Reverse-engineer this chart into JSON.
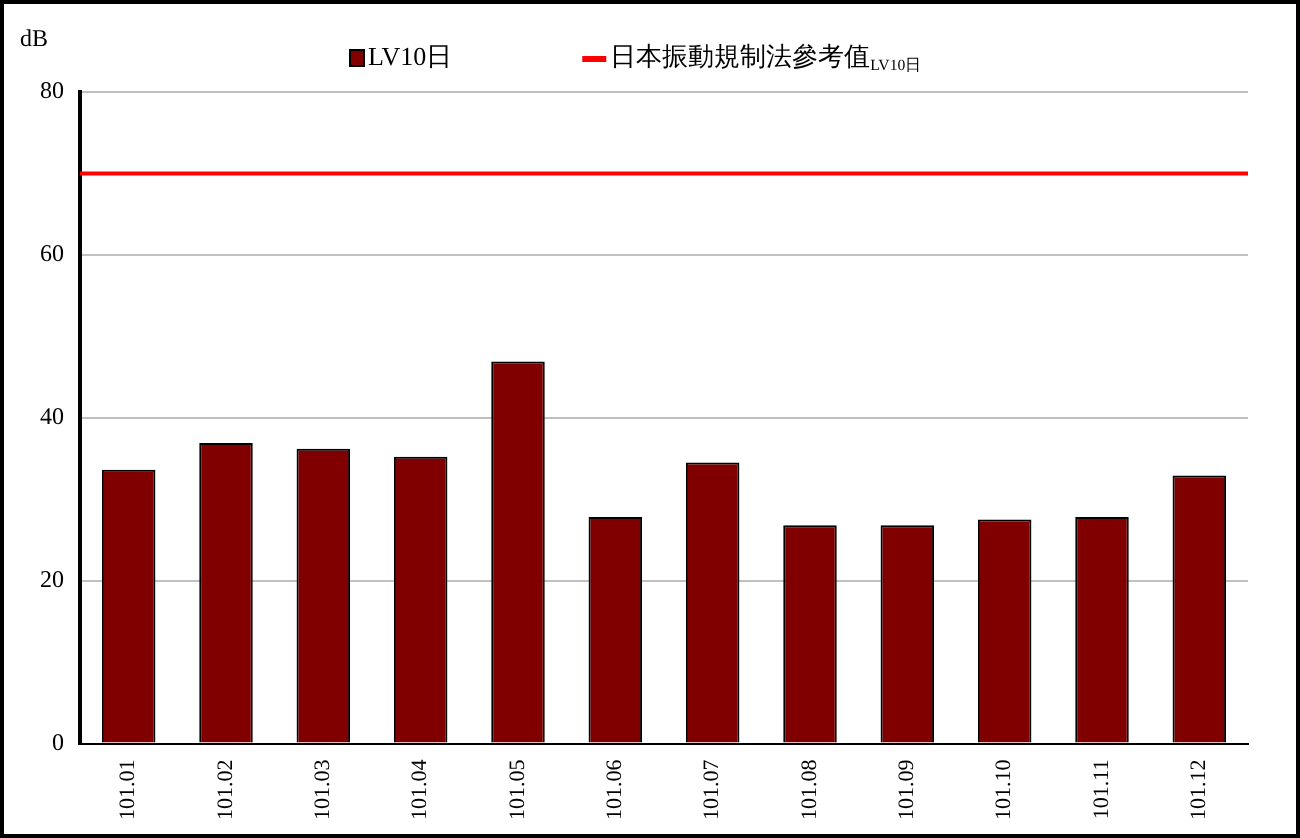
{
  "chart_data": {
    "type": "bar",
    "ylabel": "dB",
    "categories": [
      "101.01",
      "101.02",
      "101.03",
      "101.04",
      "101.05",
      "101.06",
      "101.07",
      "101.08",
      "101.09",
      "101.10",
      "101.11",
      "101.12"
    ],
    "series": [
      {
        "name": "LV10日",
        "color": "#800000",
        "values": [
          33.6,
          36.9,
          36.2,
          35.2,
          46.9,
          27.8,
          34.5,
          26.8,
          26.8,
          27.5,
          27.8,
          32.9
        ]
      }
    ],
    "ylim": [
      0,
      80
    ],
    "yticks": [
      0,
      20,
      40,
      60,
      80
    ],
    "grid": "y",
    "legend": "top",
    "ref_lines": [
      {
        "axis": "y",
        "value": 70,
        "label": "日本振動規制法參考值$_{LV10日}$",
        "color": "#ff0000"
      }
    ]
  }
}
